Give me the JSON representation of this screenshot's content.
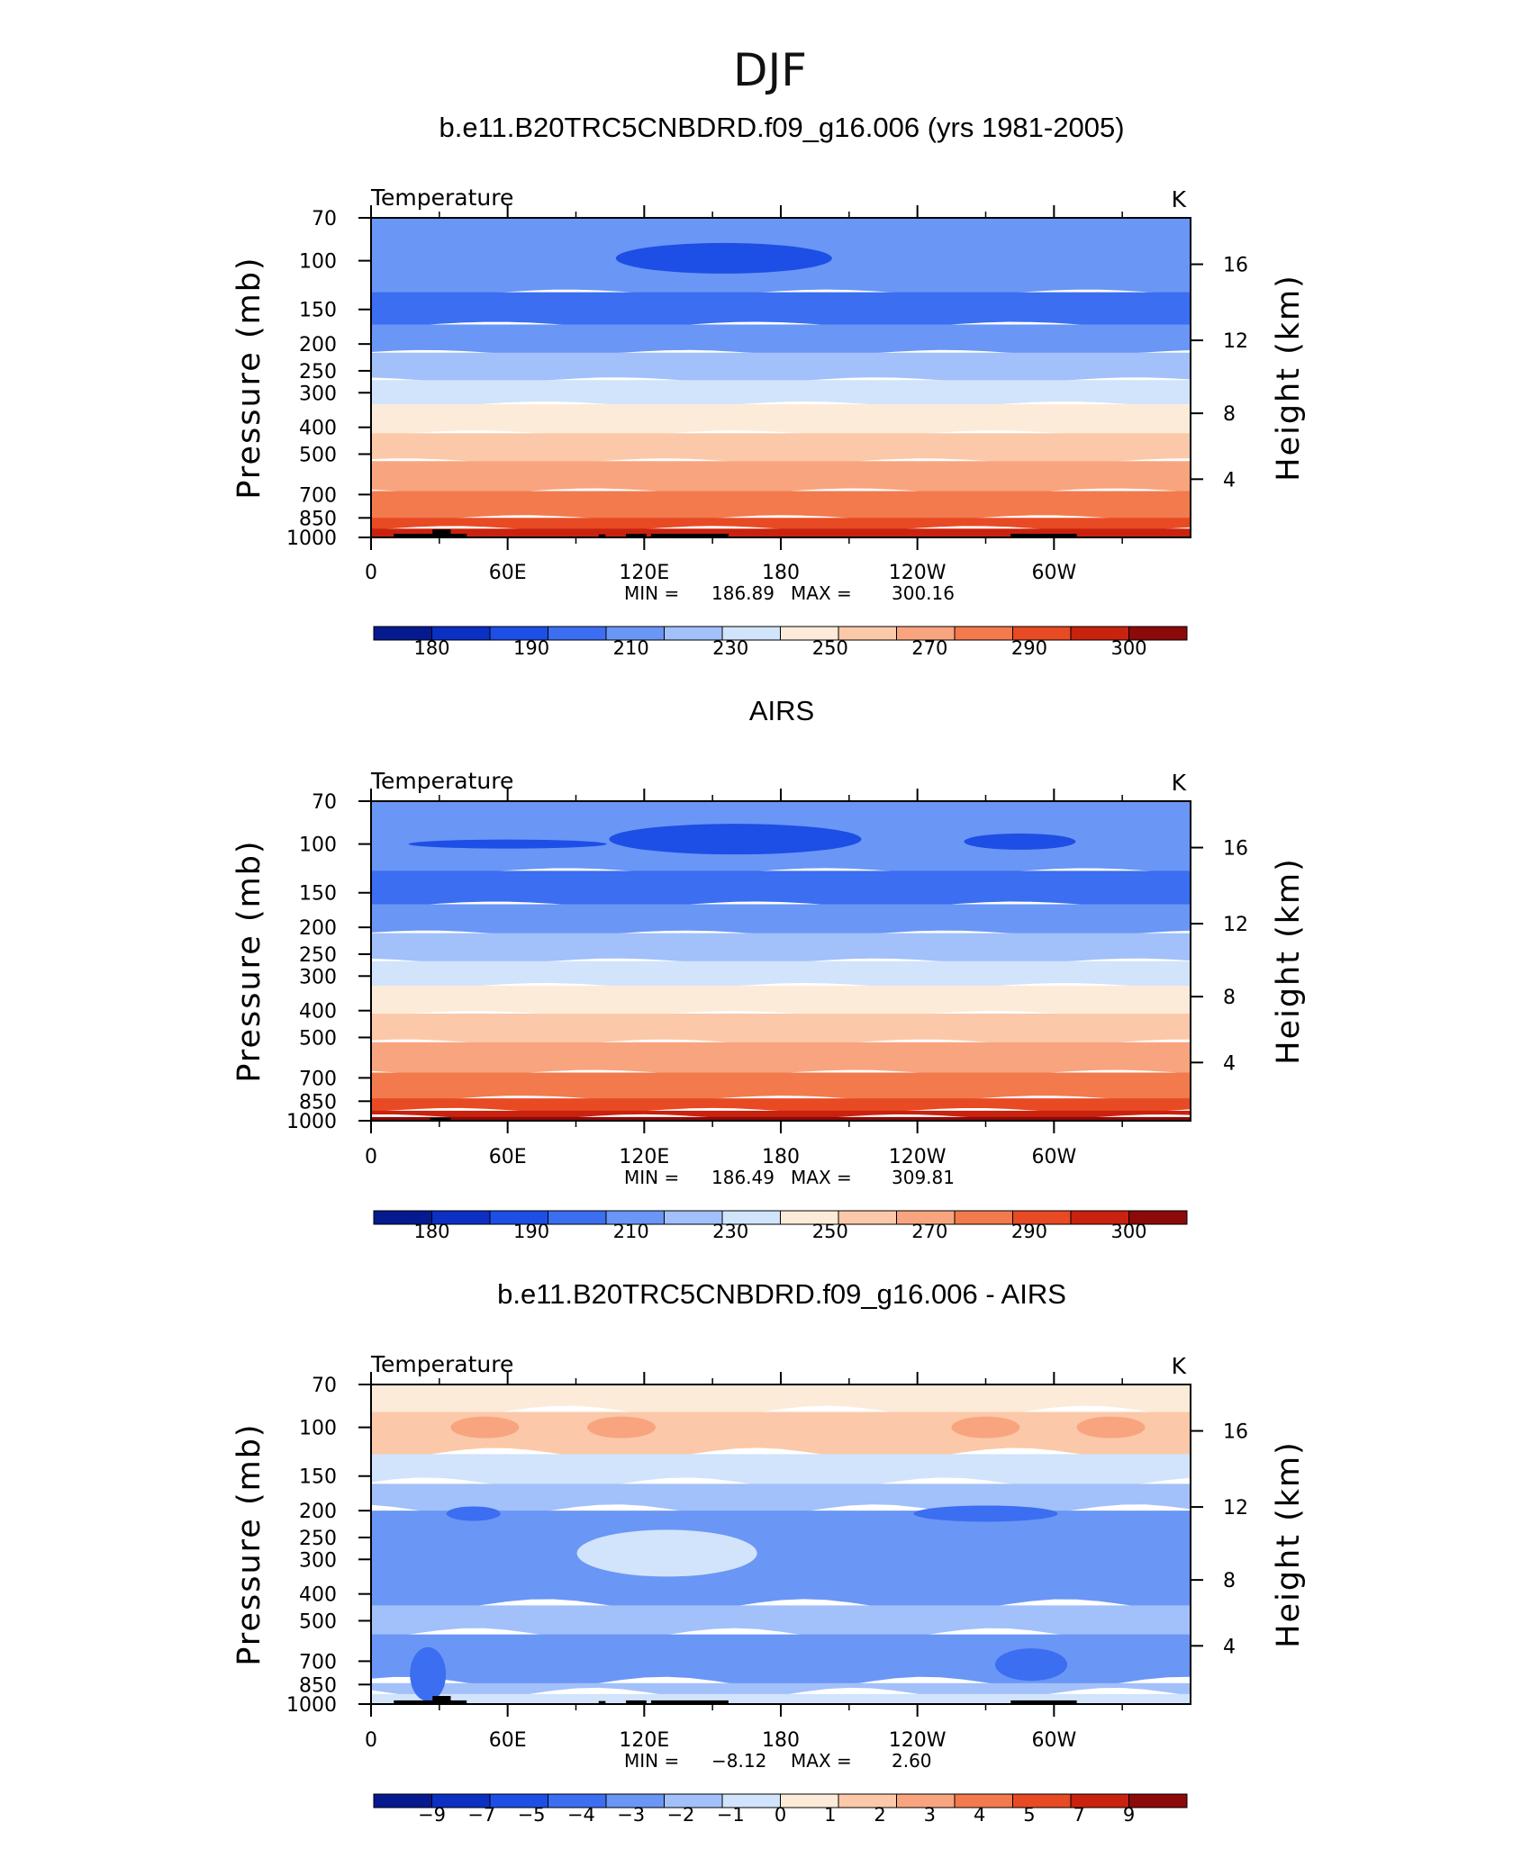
{
  "figure_title": "DJF",
  "chart_data": [
    {
      "type": "heatmap",
      "title": "b.e11.B20TRC5CNBDRD.f09_g16.006 (yrs 1981-2005)",
      "subtitle_left": "Temperature",
      "units": "K",
      "ylabel": "Pressure (mb)",
      "ylabel_right": "Height (km)",
      "x_ticks": [
        "0",
        "60E",
        "120E",
        "180",
        "120W",
        "60W"
      ],
      "y_ticks": [
        "70",
        "100",
        "150",
        "200",
        "250",
        "300",
        "400",
        "500",
        "700",
        "850",
        "1000"
      ],
      "y_ticks_right": [
        "16",
        "12",
        "8",
        "4"
      ],
      "min_label": "MIN =",
      "min_value": "186.89",
      "max_label": "MAX =",
      "max_value": "300.16",
      "colorbar_labels": [
        "180",
        "190",
        "210",
        "230",
        "250",
        "270",
        "290",
        "300"
      ],
      "colorbar_colors": [
        "#051a8f",
        "#0c2fc4",
        "#1d4fe6",
        "#3b6ef0",
        "#6a96f5",
        "#a2c0fa",
        "#d1e4fb",
        "#fdebd9",
        "#fbc9a9",
        "#f8a57f",
        "#f27a4d",
        "#e84a24",
        "#c9220e",
        "#8c0a0a"
      ],
      "y_range_mb": [
        70,
        1000
      ],
      "x_range_deg": [
        0,
        360
      ],
      "bands_level_index": [
        4,
        3,
        4,
        5,
        6,
        7,
        8,
        9,
        10,
        11,
        12
      ],
      "band_top_pressure_mb": [
        70,
        130,
        170,
        215,
        270,
        330,
        420,
        530,
        680,
        850,
        930
      ]
    },
    {
      "type": "heatmap",
      "title": "AIRS",
      "subtitle_left": "Temperature",
      "units": "K",
      "ylabel": "Pressure (mb)",
      "ylabel_right": "Height (km)",
      "x_ticks": [
        "0",
        "60E",
        "120E",
        "180",
        "120W",
        "60W"
      ],
      "y_ticks": [
        "70",
        "100",
        "150",
        "200",
        "250",
        "300",
        "400",
        "500",
        "700",
        "850",
        "1000"
      ],
      "y_ticks_right": [
        "16",
        "12",
        "8",
        "4"
      ],
      "min_label": "MIN =",
      "min_value": "186.49",
      "max_label": "MAX =",
      "max_value": "309.81",
      "colorbar_labels": [
        "180",
        "190",
        "210",
        "230",
        "250",
        "270",
        "290",
        "300"
      ],
      "colorbar_colors": [
        "#051a8f",
        "#0c2fc4",
        "#1d4fe6",
        "#3b6ef0",
        "#6a96f5",
        "#a2c0fa",
        "#d1e4fb",
        "#fdebd9",
        "#fbc9a9",
        "#f8a57f",
        "#f27a4d",
        "#e84a24",
        "#c9220e",
        "#8c0a0a"
      ],
      "y_range_mb": [
        70,
        1000
      ],
      "x_range_deg": [
        0,
        360
      ],
      "bands_level_index": [
        4,
        3,
        4,
        5,
        6,
        7,
        8,
        9,
        10,
        11,
        12,
        13
      ],
      "band_top_pressure_mb": [
        70,
        125,
        165,
        210,
        265,
        325,
        410,
        520,
        670,
        830,
        920,
        970
      ]
    },
    {
      "type": "heatmap",
      "title": "b.e11.B20TRC5CNBDRD.f09_g16.006 - AIRS",
      "subtitle_left": "Temperature",
      "units": "K",
      "ylabel": "Pressure (mb)",
      "ylabel_right": "Height (km)",
      "x_ticks": [
        "0",
        "60E",
        "120E",
        "180",
        "120W",
        "60W"
      ],
      "y_ticks": [
        "70",
        "100",
        "150",
        "200",
        "250",
        "300",
        "400",
        "500",
        "700",
        "850",
        "1000"
      ],
      "y_ticks_right": [
        "16",
        "12",
        "8",
        "4"
      ],
      "min_label": "MIN =",
      "min_value": "−8.12",
      "max_label": "MAX =",
      "max_value": "2.60",
      "colorbar_labels": [
        "−9",
        "−7",
        "−5",
        "−4",
        "−3",
        "−2",
        "−1",
        "0",
        "1",
        "2",
        "3",
        "4",
        "5",
        "7",
        "9"
      ],
      "colorbar_colors": [
        "#051a8f",
        "#0c2fc4",
        "#1d4fe6",
        "#3b6ef0",
        "#6a96f5",
        "#a2c0fa",
        "#d1e4fb",
        "#fdebd9",
        "#fbc9a9",
        "#f8a57f",
        "#f27a4d",
        "#e84a24",
        "#c9220e",
        "#8c0a0a"
      ],
      "y_range_mb": [
        70,
        1000
      ],
      "x_range_deg": [
        0,
        360
      ],
      "bands_level_index": [
        7,
        8,
        6,
        5,
        4,
        5,
        4,
        5,
        6
      ],
      "band_top_pressure_mb": [
        70,
        88,
        125,
        160,
        200,
        440,
        560,
        840,
        920
      ]
    }
  ]
}
